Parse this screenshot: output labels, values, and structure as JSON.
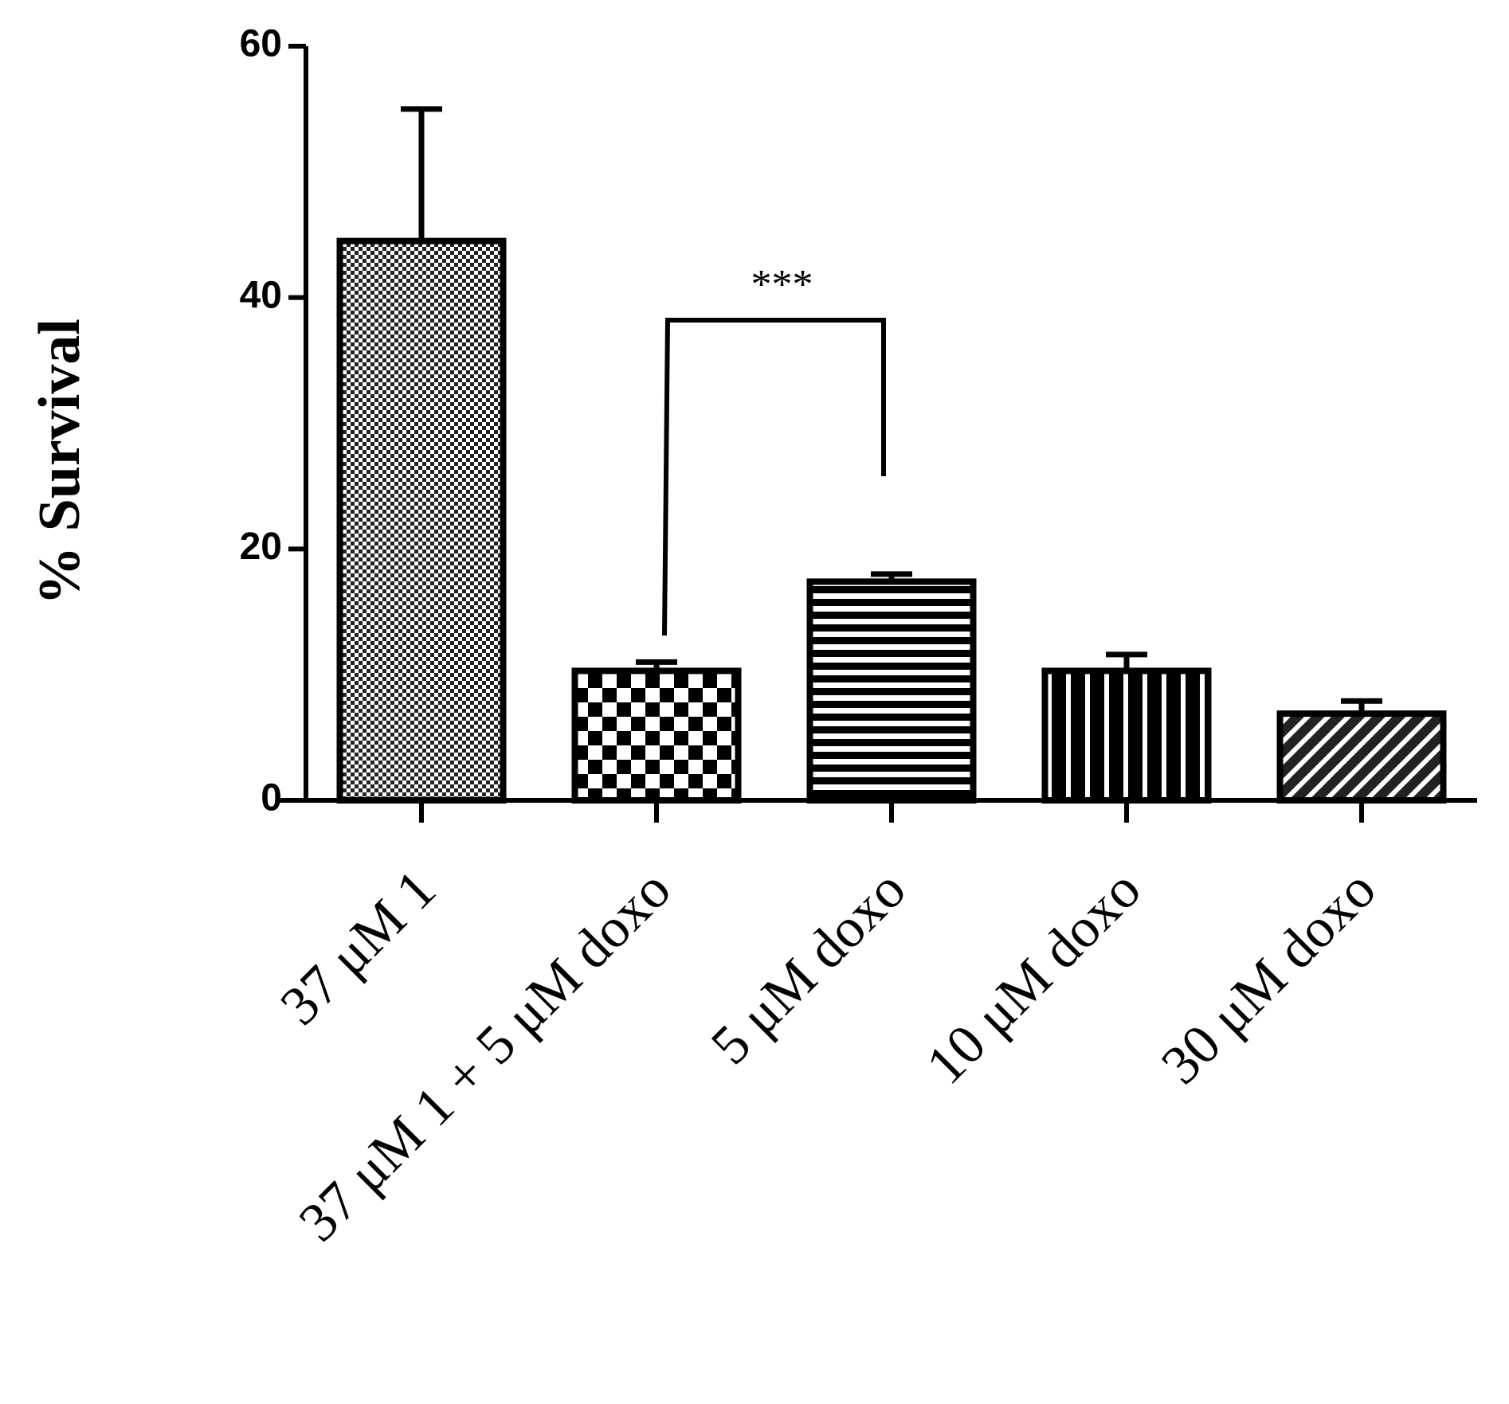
{
  "chart_data": {
    "type": "bar",
    "ylabel": "% Survival",
    "categories": [
      "37 μM 1",
      "37 μM 1 + 5 μM doxo",
      "5 μM doxo",
      "10 μM doxo",
      "30 μM doxo"
    ],
    "values": [
      44.5,
      10.3,
      17.4,
      10.3,
      6.9
    ],
    "errors": [
      10.5,
      0.7,
      0.6,
      1.3,
      1.0
    ],
    "color": "#000000",
    "ylim": [
      0,
      60
    ],
    "yticks": [
      0,
      20,
      40,
      60
    ],
    "grid": false,
    "annotations": [
      "***"
    ]
  }
}
